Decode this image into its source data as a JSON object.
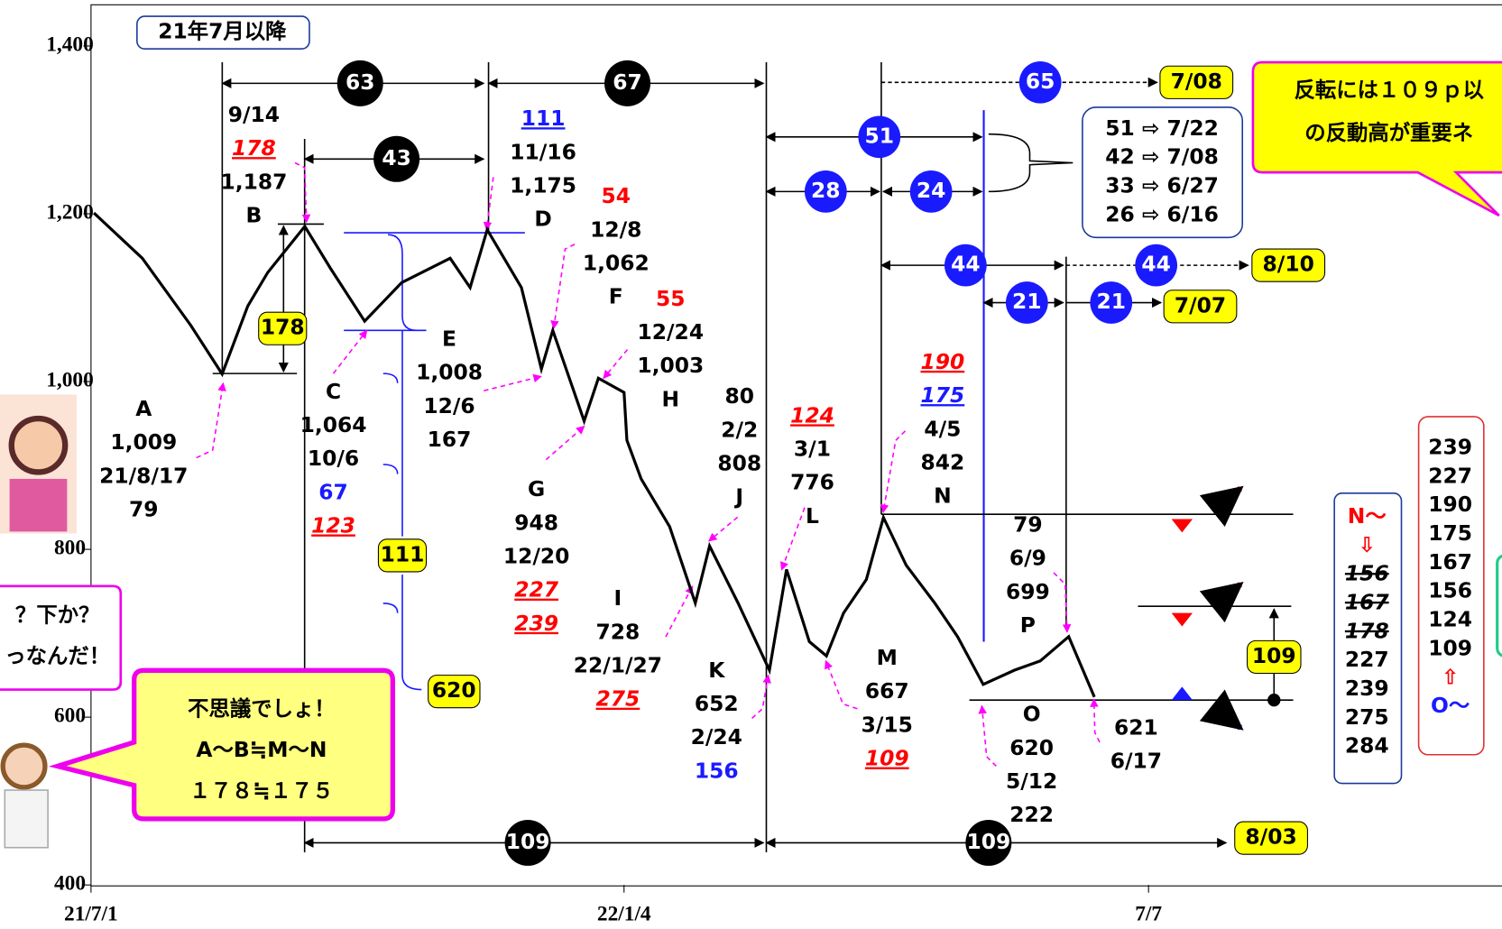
{
  "chart_data": {
    "type": "line",
    "color": "#000000",
    "x": [
      1,
      18,
      35,
      46,
      55,
      62,
      75,
      84,
      96,
      109,
      126,
      133,
      139,
      151,
      158,
      162,
      173,
      178,
      187,
      188,
      193,
      203,
      212,
      217,
      227,
      238,
      244,
      252,
      258,
      264,
      272,
      278,
      286,
      296,
      304,
      313,
      324,
      333,
      343,
      348,
      352
    ],
    "values": [
      1201,
      1147,
      1067,
      1009,
      1090,
      1130,
      1185,
      1135,
      1072,
      1118,
      1147,
      1112,
      1181,
      1112,
      1015,
      1061,
      953,
      1004,
      987,
      930,
      884,
      827,
      736,
      804,
      736,
      656,
      776,
      690,
      673,
      724,
      764,
      838,
      781,
      736,
      696,
      639,
      656,
      667,
      696,
      656,
      624
    ],
    "xlim": [
      0,
      495
    ],
    "ylim": [
      400,
      1400
    ],
    "xticks": [
      {
        "value": 0,
        "label": "21/7/1"
      },
      {
        "value": 187,
        "label": "22/1/4"
      },
      {
        "value": 371,
        "label": "7/7"
      }
    ],
    "yticks": [
      {
        "value": 400,
        "label": "400"
      },
      {
        "value": 600,
        "label": "600"
      },
      {
        "value": 800,
        "label": "800"
      },
      {
        "value": 1000,
        "label": "1,000"
      },
      {
        "value": 1200,
        "label": "1,200"
      },
      {
        "value": 1400,
        "label": "1,400"
      }
    ],
    "title_box": "21年7月以降",
    "point_labels": [
      [
        "A",
        "1,009",
        "21/8/17",
        "79"
      ],
      [
        "9/14",
        "178",
        "1,187",
        "B"
      ],
      [
        "C",
        "1,064",
        "10/6",
        "67",
        "123"
      ],
      [
        "111",
        "11/16",
        "1,175",
        "D"
      ],
      [
        "E",
        "1,008",
        "12/6",
        "167"
      ],
      [
        "54",
        "12/8",
        "1,062",
        "F"
      ],
      [
        "G",
        "948",
        "12/20",
        "227",
        "239"
      ],
      [
        "55",
        "12/24",
        "1,003",
        "H"
      ],
      [
        "I",
        "728",
        "22/1/27",
        "275"
      ],
      [
        "80",
        "2/2",
        "808",
        "J"
      ],
      [
        "K",
        "652",
        "2/24",
        "156"
      ],
      [
        "124",
        "3/1",
        "776",
        "L"
      ],
      [
        "M",
        "667",
        "3/15",
        "109"
      ],
      [
        "190",
        "175",
        "4/5",
        "842",
        "N"
      ],
      [
        "O",
        "620",
        "5/12",
        "222"
      ],
      [
        "79",
        "6/9",
        "699",
        "P"
      ],
      [
        "621",
        "6/17"
      ]
    ],
    "black_circles": [
      "63",
      "67",
      "43",
      "109",
      "109"
    ],
    "blue_circles": [
      "65",
      "51",
      "28",
      "24",
      "44",
      "44",
      "21",
      "21"
    ],
    "yellow_boxes": [
      "178",
      "111",
      "620",
      "7/08",
      "8/10",
      "7/07",
      "109",
      "8/03"
    ],
    "count_box": [
      "51 ⇨ 7/22",
      "42 ⇨ 7/08",
      "33 ⇨ 6/27",
      "26 ⇨ 6/16"
    ],
    "n_box": [
      "N〜",
      "⇩",
      "156",
      "167",
      "178",
      "227",
      "239",
      "275",
      "284"
    ],
    "o_box": [
      "239",
      "227",
      "190",
      "175",
      "167",
      "156",
      "124",
      "109",
      "⇧",
      "O〜"
    ],
    "bubble_top": [
      "反転には１０９ｐ以",
      "の反動高が重要ネ"
    ],
    "bubble_left": [
      "？下か？",
      "っなんだ！"
    ],
    "bubble_pink": [
      "不思議でしょ！",
      "A〜B≒M〜N",
      "１７８≒１７５"
    ]
  }
}
